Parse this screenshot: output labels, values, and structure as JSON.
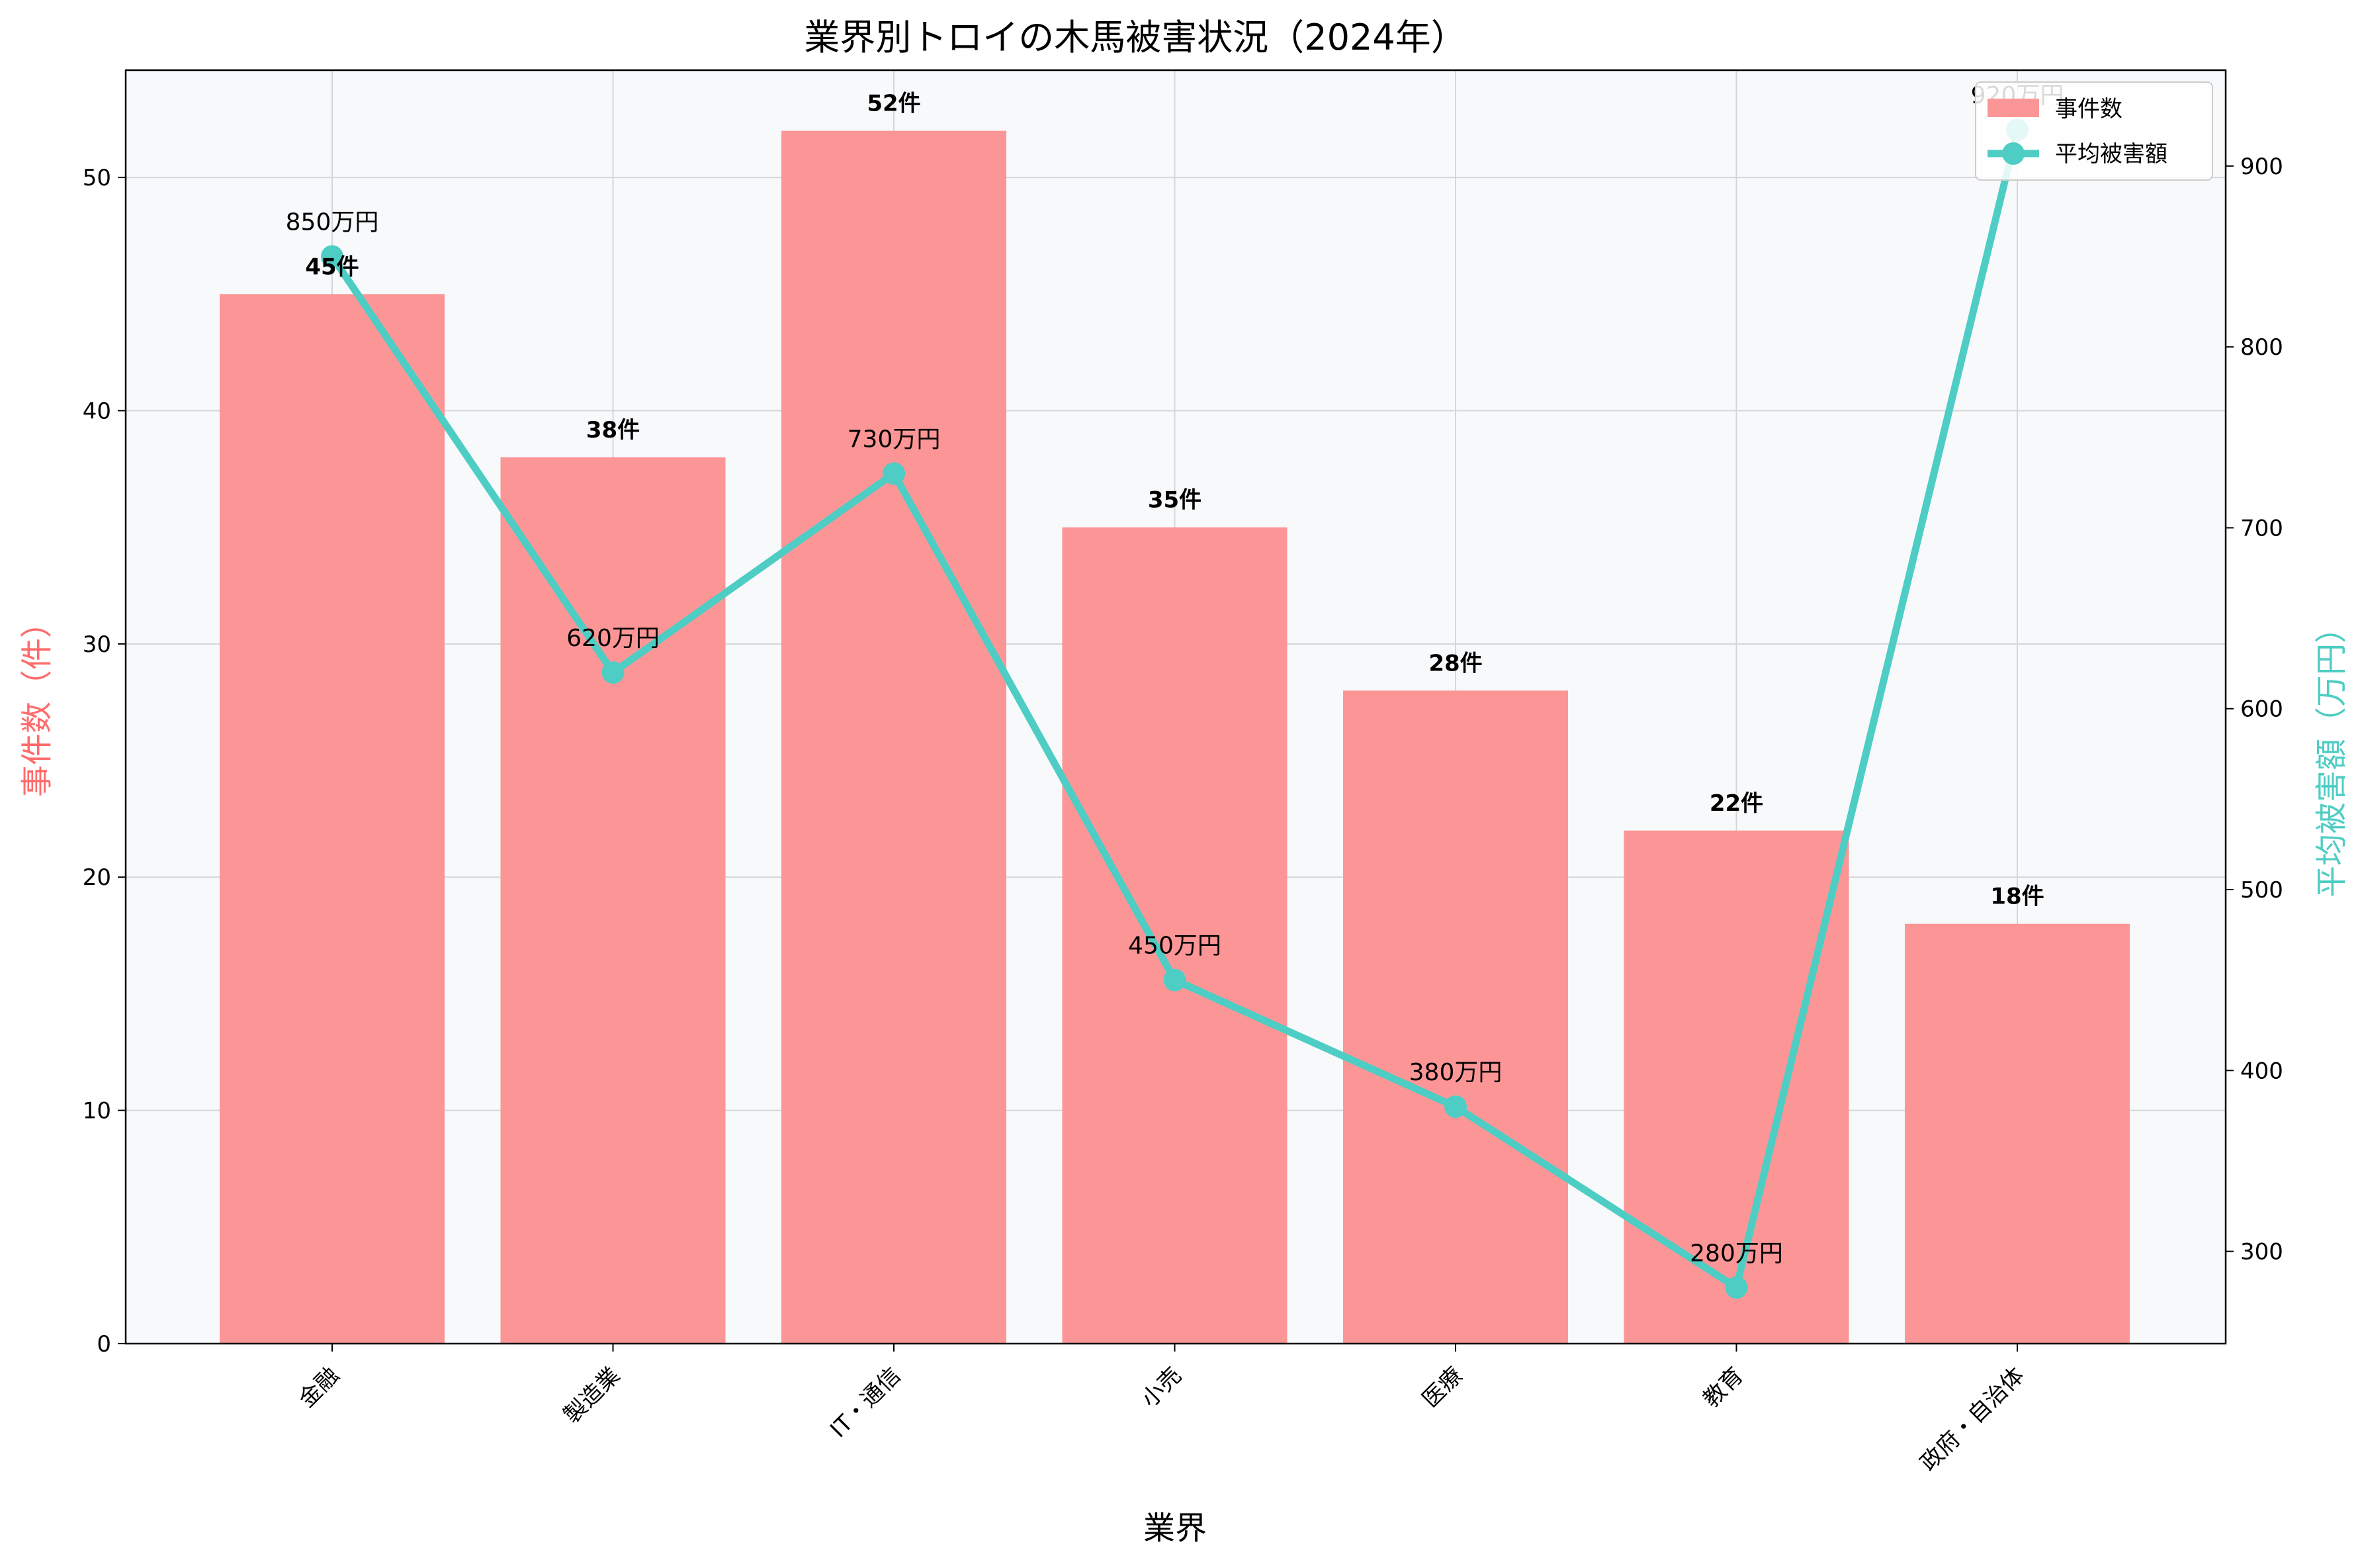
{
  "chart_data": {
    "type": "bar",
    "title": "業界別トロイの木馬被害状況（2024年）",
    "xlabel": "業界",
    "ylabel_left": "事件数（件）",
    "ylabel_right": "平均被害額（万円）",
    "categories": [
      "金融",
      "製造業",
      "IT・通信",
      "小売",
      "医療",
      "教育",
      "政府・自治体"
    ],
    "series": [
      {
        "name": "事件数",
        "type": "bar",
        "axis": "left",
        "values": [
          45,
          38,
          52,
          35,
          28,
          22,
          18
        ],
        "labels": [
          "45件",
          "38件",
          "52件",
          "35件",
          "28件",
          "22件",
          "18件"
        ],
        "color": "#fc9696"
      },
      {
        "name": "平均被害額",
        "type": "line",
        "axis": "right",
        "values": [
          850,
          620,
          730,
          450,
          380,
          280,
          920
        ],
        "labels": [
          "850万円",
          "620万円",
          "730万円",
          "450万円",
          "380万円",
          "280万円",
          "920万円"
        ],
        "color": "#4ecdc4"
      }
    ],
    "ylim_left": [
      0,
      54.6
    ],
    "ylim_right": [
      249,
      953
    ],
    "yticks_left": [
      0,
      10,
      20,
      30,
      40,
      50
    ],
    "yticks_right": [
      300,
      400,
      500,
      600,
      700,
      800,
      900
    ],
    "grid": true,
    "legend": "upper right",
    "left_axis_color": "#ff6b6b",
    "right_axis_color": "#4ecdc4",
    "plot_bg": "#f7f9fb"
  }
}
